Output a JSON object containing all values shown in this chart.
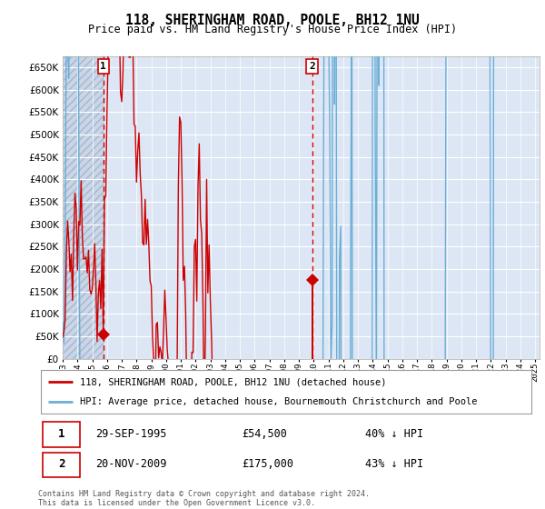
{
  "title": "118, SHERINGHAM ROAD, POOLE, BH12 1NU",
  "subtitle": "Price paid vs. HM Land Registry's House Price Index (HPI)",
  "legend_line1": "118, SHERINGHAM ROAD, POOLE, BH12 1NU (detached house)",
  "legend_line2": "HPI: Average price, detached house, Bournemouth Christchurch and Poole",
  "footnote": "Contains HM Land Registry data © Crown copyright and database right 2024.\nThis data is licensed under the Open Government Licence v3.0.",
  "sale1": {
    "label": "1",
    "date": "29-SEP-1995",
    "price": 54500,
    "note": "40% ↓ HPI",
    "x_year": 1995.75
  },
  "sale2": {
    "label": "2",
    "date": "20-NOV-2009",
    "price": 175000,
    "note": "43% ↓ HPI",
    "x_year": 2009.89
  },
  "hpi_color": "#6baed6",
  "price_color": "#cc0000",
  "background_color": "#dce6f5",
  "grid_color": "#b8c8dc",
  "ylim": [
    0,
    675000
  ],
  "yticks": [
    0,
    50000,
    100000,
    150000,
    200000,
    250000,
    300000,
    350000,
    400000,
    450000,
    500000,
    550000,
    600000,
    650000
  ],
  "xmin": 1993.0,
  "xmax": 2025.3,
  "footnote_color": "#555555"
}
